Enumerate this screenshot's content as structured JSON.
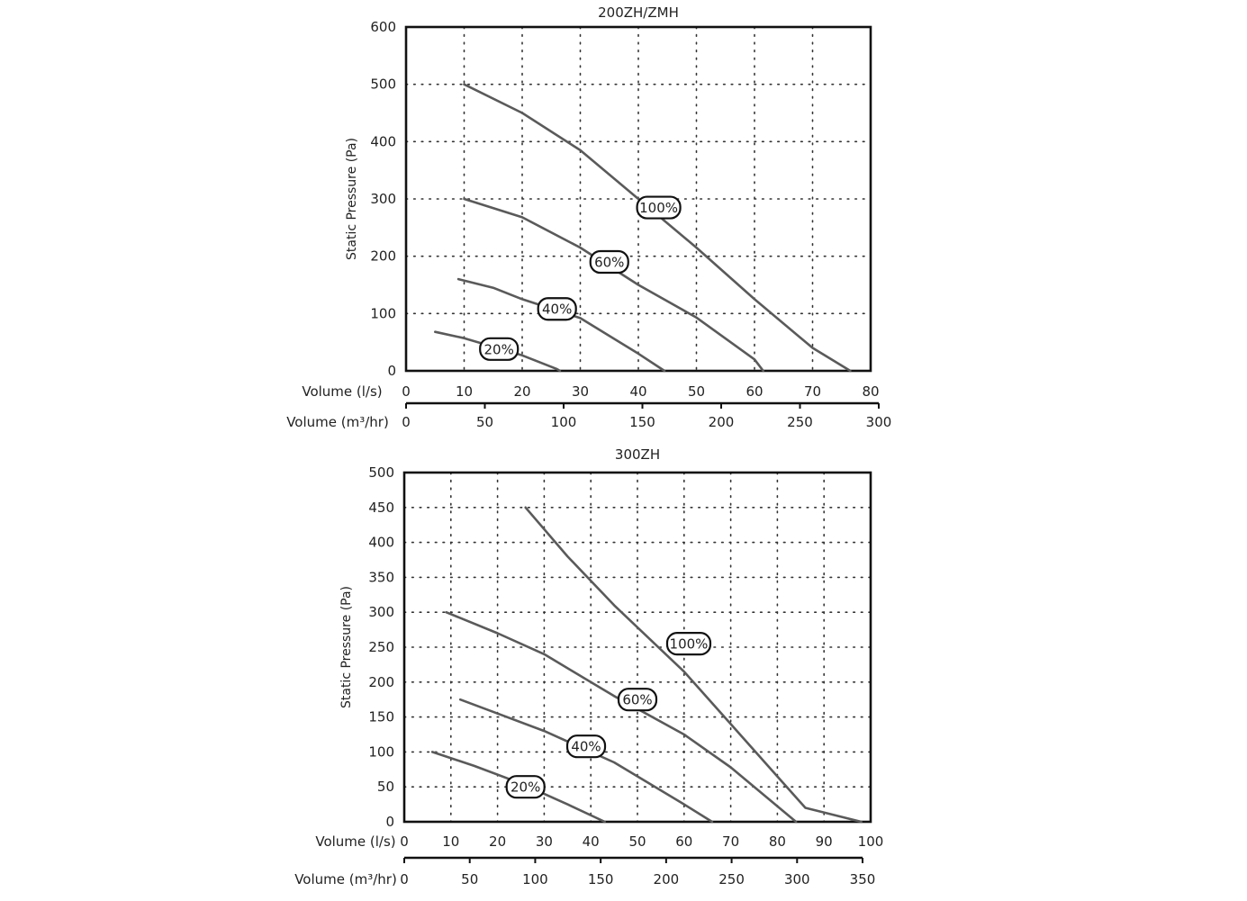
{
  "colors": {
    "axis": "#111111",
    "curve": "#5a5a5a",
    "grid": "#333333",
    "text": "#222222",
    "badge_fill": "#ffffff"
  },
  "chart_data": [
    {
      "type": "line",
      "title": "200ZH/ZMH",
      "ylabel": "Static Pressure (Pa)",
      "xlabel": "Volume (l/s)",
      "xlabel2": "Volume (m³/hr)",
      "xlim": [
        0,
        80
      ],
      "ylim": [
        0,
        600
      ],
      "grid": true,
      "x_ticks": [
        "0",
        "10",
        "20",
        "30",
        "40",
        "50",
        "60",
        "70",
        "80"
      ],
      "y_ticks": [
        "0",
        "100",
        "200",
        "300",
        "400",
        "500",
        "600"
      ],
      "x2_ticks": [
        "0",
        "50",
        "100",
        "150",
        "200",
        "250",
        "300"
      ],
      "series": [
        {
          "name": "100%",
          "points": [
            [
              10,
              500
            ],
            [
              20,
              450
            ],
            [
              30,
              385
            ],
            [
              40,
              300
            ],
            [
              50,
              215
            ],
            [
              60,
              125
            ],
            [
              70,
              40
            ],
            [
              76.5,
              0
            ]
          ],
          "label_at": [
            43.5,
            285
          ]
        },
        {
          "name": "60%",
          "points": [
            [
              10,
              300
            ],
            [
              20,
              268
            ],
            [
              30,
              215
            ],
            [
              40,
              150
            ],
            [
              50,
              93
            ],
            [
              60,
              20
            ],
            [
              61.5,
              0
            ]
          ],
          "label_at": [
            35,
            190
          ]
        },
        {
          "name": "40%",
          "points": [
            [
              9,
              160
            ],
            [
              15,
              145
            ],
            [
              20,
              125
            ],
            [
              30,
              92
            ],
            [
              40,
              30
            ],
            [
              44.5,
              0
            ]
          ],
          "label_at": [
            26,
            108
          ]
        },
        {
          "name": "20%",
          "points": [
            [
              5,
              68
            ],
            [
              10,
              57
            ],
            [
              20,
              27
            ],
            [
              26,
              3
            ],
            [
              26.5,
              0
            ]
          ],
          "label_at": [
            16,
            38
          ]
        }
      ]
    },
    {
      "type": "line",
      "title": "300ZH",
      "ylabel": "Static Pressure (Pa)",
      "xlabel": "Volume (l/s)",
      "xlabel2": "Volume (m³/hr)",
      "xlim": [
        0,
        100
      ],
      "ylim": [
        0,
        500
      ],
      "grid": true,
      "x_ticks": [
        "0",
        "10",
        "20",
        "30",
        "40",
        "50",
        "60",
        "70",
        "80",
        "90",
        "100"
      ],
      "y_ticks": [
        "0",
        "50",
        "100",
        "150",
        "200",
        "250",
        "300",
        "350",
        "400",
        "450",
        "500"
      ],
      "x2_ticks": [
        "0",
        "50",
        "100",
        "150",
        "200",
        "250",
        "300",
        "350"
      ],
      "series": [
        {
          "name": "100%",
          "points": [
            [
              26,
              450
            ],
            [
              35,
              380
            ],
            [
              45,
              310
            ],
            [
              60,
              215
            ],
            [
              70,
              140
            ],
            [
              80,
              65
            ],
            [
              86,
              20
            ],
            [
              98,
              0
            ]
          ],
          "label_at": [
            61,
            255
          ]
        },
        {
          "name": "60%",
          "points": [
            [
              9,
              300
            ],
            [
              20,
              270
            ],
            [
              30,
              240
            ],
            [
              45,
              180
            ],
            [
              60,
              125
            ],
            [
              70,
              78
            ],
            [
              84,
              0
            ]
          ],
          "label_at": [
            50,
            175
          ]
        },
        {
          "name": "40%",
          "points": [
            [
              12,
              175
            ],
            [
              20,
              155
            ],
            [
              30,
              130
            ],
            [
              45,
              85
            ],
            [
              60,
              25
            ],
            [
              66,
              0
            ]
          ],
          "label_at": [
            39,
            108
          ]
        },
        {
          "name": "20%",
          "points": [
            [
              6,
              100
            ],
            [
              15,
              80
            ],
            [
              25,
              55
            ],
            [
              35,
              25
            ],
            [
              43,
              0
            ]
          ],
          "label_at": [
            26,
            50
          ]
        }
      ]
    }
  ]
}
